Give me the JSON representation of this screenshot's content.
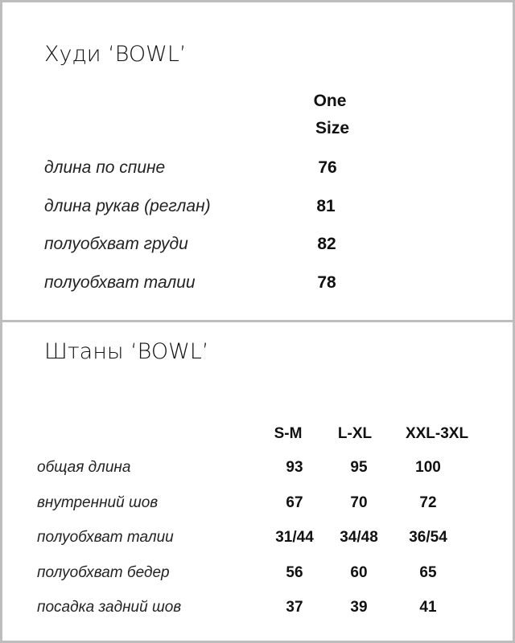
{
  "hoodie": {
    "title": "Худи ‘BOWL’",
    "size_header": [
      "One",
      "Size"
    ],
    "rows": [
      {
        "label": "длина по спине",
        "value": "76"
      },
      {
        "label": "длина рукав (реглан)",
        "value": "81"
      },
      {
        "label": "полуобхват груди",
        "value": "82"
      },
      {
        "label": "полуобхват талии",
        "value": "78"
      }
    ]
  },
  "pants": {
    "title": "Штаны ‘BOWL’",
    "sizes": [
      "S-M",
      "L-XL",
      "XXL-3XL"
    ],
    "rows": [
      {
        "label": "общая длина",
        "values": [
          "93",
          "95",
          "100"
        ]
      },
      {
        "label": "внутренний шов",
        "values": [
          "67",
          "70",
          "72"
        ]
      },
      {
        "label": "полуобхват талии",
        "values": [
          "31/44",
          "34/48",
          "36/54"
        ]
      },
      {
        "label": "полуобхват бедер",
        "values": [
          "56",
          "60",
          "65"
        ]
      },
      {
        "label": "посадка задний шов",
        "values": [
          "37",
          "39",
          "41"
        ]
      }
    ]
  }
}
